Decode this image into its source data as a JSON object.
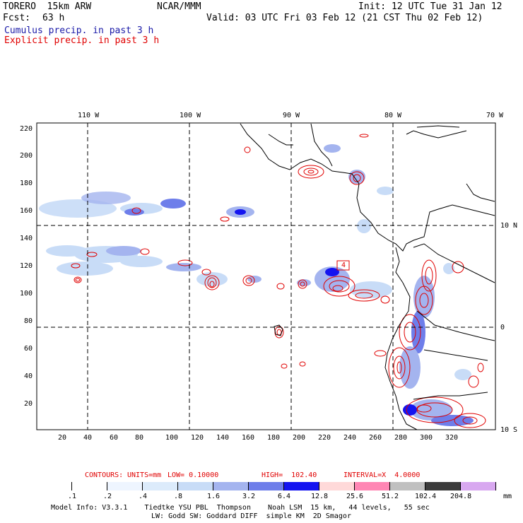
{
  "header": {
    "model": "TORERO  15km ARW",
    "org": "NCAR/MMM",
    "init": "Init: 12 UTC Tue 31 Jan 12",
    "fcst_label": "Fcst:",
    "fcst_value": "63 h",
    "valid": "Valid: 03 UTC Fri 03 Feb 12 (21 CST Thu 02 Feb 12)",
    "cumulus": "Cumulus precip. in past 3 h",
    "explicit": "Explicit precip. in past 3 h"
  },
  "map": {
    "lon_labels": [
      "110 W",
      "100 W",
      "90 W",
      "80 W",
      "70 W"
    ],
    "lat_labels": [
      "10 N",
      "0",
      "10 S"
    ],
    "y_ticks": [
      "220",
      "200",
      "180",
      "160",
      "140",
      "120",
      "100",
      "80",
      "60",
      "40",
      "20"
    ],
    "x_ticks": [
      "20",
      "40",
      "60",
      "80",
      "100",
      "120",
      "140",
      "160",
      "180",
      "200",
      "220",
      "240",
      "260",
      "280",
      "300",
      "320"
    ],
    "max_label": "4"
  },
  "contours": {
    "contours_label": "CONTOURS:",
    "units": "UNITS=mm",
    "low": "LOW= 0.10000",
    "high": "HIGH=  102.40",
    "interval": "INTERVAL=X  4.0000"
  },
  "colorbar": {
    "labels": [
      ".1",
      ".2",
      ".4",
      ".8",
      "1.6",
      "3.2",
      "6.4",
      "12.8",
      "25.6",
      "51.2",
      "102.4",
      "204.8"
    ],
    "unit": "mm",
    "colors": [
      "#ffffff",
      "#ffffff",
      "#eef5ff",
      "#dcebfb",
      "#c8dcf7",
      "#a4b4ef",
      "#6e7eea",
      "#1414f0",
      "#ffd9d9",
      "#ff86b4",
      "#c0c0c0",
      "#3c3c3c",
      "#d8a8f0"
    ]
  },
  "footer": {
    "line1": "Model Info: V3.3.1    Tiedtke YSU PBL  Thompson    Noah LSM  15 km,   44 levels,   55 sec",
    "line2": "LW: Godd SW: Goddard DIFF  simple KM  2D Smagor"
  },
  "colors": {
    "cumulus_blue": "#1a1aa8",
    "explicit_red": "#e00000",
    "precip_light": "#c8dcf7",
    "precip_mid": "#6e7eea",
    "precip_dark": "#1414f0"
  }
}
